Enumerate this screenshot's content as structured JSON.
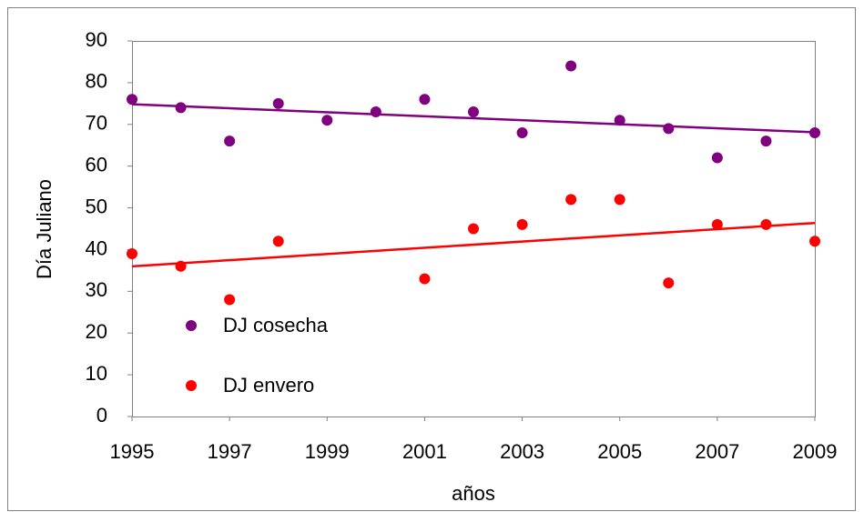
{
  "chart_data": {
    "type": "scatter",
    "x_label": "años",
    "y_label": "Día Juliano",
    "x": [
      1995,
      1996,
      1997,
      1998,
      1999,
      2000,
      2001,
      2002,
      2003,
      2004,
      2005,
      2006,
      2007,
      2008,
      2009
    ],
    "series": [
      {
        "name": "DJ cosecha",
        "color": "#800080",
        "values": [
          76,
          74,
          66,
          75,
          71,
          73,
          76,
          73,
          68,
          84,
          71,
          69,
          62,
          66,
          68
        ]
      },
      {
        "name": "DJ envero",
        "color": "#ff0000",
        "values": [
          39,
          36,
          28,
          42,
          null,
          null,
          33,
          45,
          46,
          52,
          52,
          32,
          46,
          46,
          42
        ]
      }
    ],
    "xlim": [
      1995,
      2009
    ],
    "xticks": [
      1995,
      1997,
      1999,
      2001,
      2003,
      2005,
      2007,
      2009
    ],
    "ylim": [
      0,
      90
    ],
    "yticks": [
      0,
      10,
      20,
      30,
      40,
      50,
      60,
      70,
      80,
      90
    ],
    "trendline": true,
    "legend": "lower-left"
  }
}
